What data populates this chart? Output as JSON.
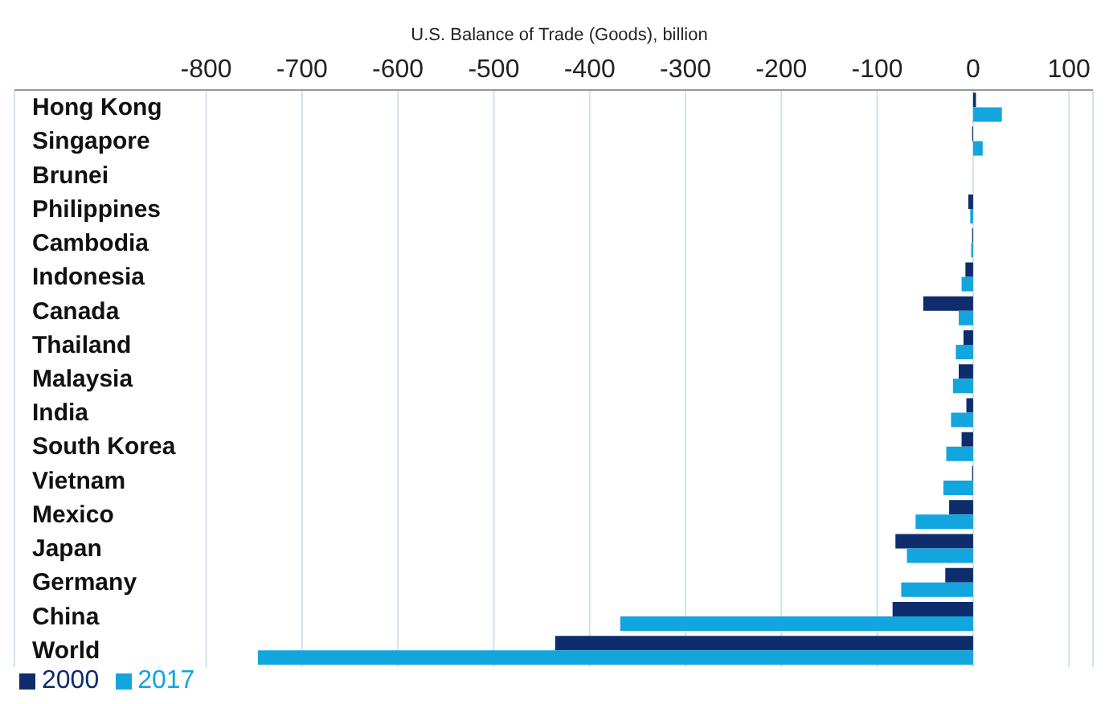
{
  "chart_data": {
    "type": "bar",
    "orientation": "horizontal",
    "xlabel": "U.S. Balance of Trade (Goods), billion",
    "categories": [
      "Hong Kong",
      "Singapore",
      "Brunei",
      "Philippines",
      "Cambodia",
      "Indonesia",
      "Canada",
      "Thailand",
      "Malaysia",
      "India",
      "South Korea",
      "Vietnam",
      "Mexico",
      "Japan",
      "Germany",
      "China",
      "World"
    ],
    "series": [
      {
        "name": "2000",
        "color": "#0d2d6c",
        "values": [
          3,
          -1,
          null,
          -5,
          -1,
          -8,
          -52,
          -10,
          -15,
          -7,
          -12,
          -1,
          -25,
          -81,
          -29,
          -84,
          -436
        ]
      },
      {
        "name": "2017",
        "color": "#12a5de",
        "values": [
          30,
          10,
          null,
          -3,
          -2,
          -12,
          -15,
          -18,
          -21,
          -23,
          -28,
          -31,
          -60,
          -69,
          -75,
          -368,
          -746
        ]
      }
    ],
    "xlim": [
      -1000,
      125
    ],
    "xticks": [
      -800,
      -700,
      -600,
      -500,
      -400,
      -300,
      -200,
      -100,
      0,
      100
    ],
    "grid": "x",
    "legend": "bottom left"
  }
}
